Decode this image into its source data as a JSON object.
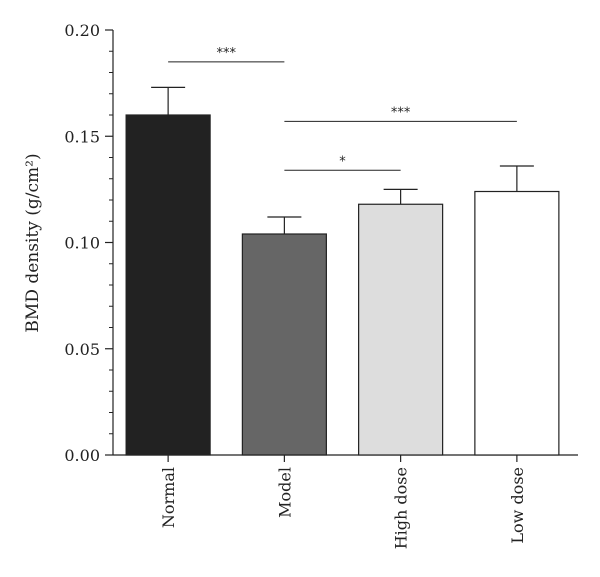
{
  "chart_data": {
    "type": "bar",
    "categories": [
      "Normal",
      "Model",
      "High dose",
      "Low dose"
    ],
    "values": [
      0.16,
      0.104,
      0.118,
      0.124
    ],
    "errors": [
      0.013,
      0.008,
      0.007,
      0.012
    ],
    "bar_colors": [
      "#222222",
      "#666666",
      "#dddddd",
      "#ffffff"
    ],
    "ylabel": "BMD density (g/cm²)",
    "ylim": [
      0,
      0.2
    ],
    "yticks": [
      0.0,
      0.05,
      0.1,
      0.15,
      0.2
    ],
    "ytick_labels": [
      "0.00",
      "0.05",
      "0.10",
      "0.15",
      "0.20"
    ],
    "grid": false,
    "significance": [
      {
        "from": "Normal",
        "to": "Model",
        "label": "***",
        "y": 0.185
      },
      {
        "from": "Model",
        "to": "Low dose",
        "label": "***",
        "y": 0.157
      },
      {
        "from": "Model",
        "to": "High dose",
        "label": "*",
        "y": 0.134
      }
    ]
  }
}
